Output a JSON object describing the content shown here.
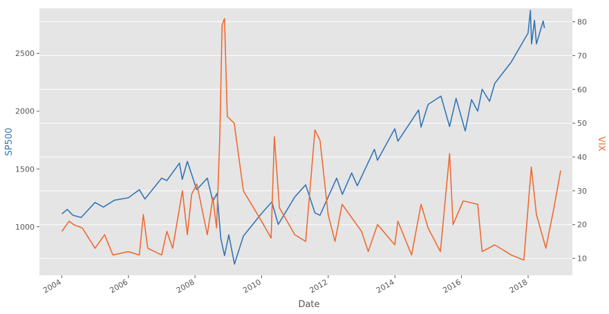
{
  "chart_data": {
    "type": "line",
    "xlabel": "Date",
    "ylabel_left": "SP500",
    "ylabel_right": "VIX",
    "x_range": [
      "2003-05-01",
      "2019-05-01"
    ],
    "x_ticks": [
      "2004",
      "2006",
      "2008",
      "2010",
      "2012",
      "2014",
      "2016",
      "2018"
    ],
    "y_left_ticks": [
      1000,
      1500,
      2000,
      2500
    ],
    "y_left_range": [
      580,
      2890
    ],
    "y_right_ticks": [
      10,
      20,
      30,
      40,
      50,
      60,
      70,
      80
    ],
    "y_right_range": [
      5.0,
      84.0
    ],
    "grid": true,
    "background": "#e5e5e5",
    "colors": {
      "sp500": "#3274b5",
      "vix": "#ee6a30"
    },
    "series": [
      {
        "name": "SP500",
        "axis": "left",
        "points": [
          [
            "2004-01-02",
            1110
          ],
          [
            "2004-03-01",
            1150
          ],
          [
            "2004-05-01",
            1100
          ],
          [
            "2004-08-01",
            1080
          ],
          [
            "2004-12-31",
            1210
          ],
          [
            "2005-04-01",
            1170
          ],
          [
            "2005-08-01",
            1230
          ],
          [
            "2005-12-31",
            1250
          ],
          [
            "2006-05-01",
            1320
          ],
          [
            "2006-07-01",
            1240
          ],
          [
            "2006-12-31",
            1420
          ],
          [
            "2007-02-27",
            1400
          ],
          [
            "2007-07-15",
            1550
          ],
          [
            "2007-08-15",
            1410
          ],
          [
            "2007-10-09",
            1565
          ],
          [
            "2008-01-20",
            1320
          ],
          [
            "2008-05-15",
            1420
          ],
          [
            "2008-07-15",
            1220
          ],
          [
            "2008-08-30",
            1290
          ],
          [
            "2008-10-10",
            900
          ],
          [
            "2008-11-20",
            750
          ],
          [
            "2009-01-06",
            930
          ],
          [
            "2009-03-09",
            677
          ],
          [
            "2009-06-15",
            920
          ],
          [
            "2009-12-31",
            1115
          ],
          [
            "2010-04-23",
            1215
          ],
          [
            "2010-07-02",
            1020
          ],
          [
            "2010-12-31",
            1258
          ],
          [
            "2011-04-29",
            1363
          ],
          [
            "2011-08-08",
            1120
          ],
          [
            "2011-10-03",
            1099
          ],
          [
            "2011-12-31",
            1257
          ],
          [
            "2012-04-02",
            1420
          ],
          [
            "2012-06-04",
            1280
          ],
          [
            "2012-09-14",
            1465
          ],
          [
            "2012-11-15",
            1355
          ],
          [
            "2013-05-21",
            1670
          ],
          [
            "2013-06-24",
            1575
          ],
          [
            "2013-12-31",
            1848
          ],
          [
            "2014-02-03",
            1740
          ],
          [
            "2014-09-18",
            2010
          ],
          [
            "2014-10-15",
            1862
          ],
          [
            "2014-12-31",
            2058
          ],
          [
            "2015-05-21",
            2130
          ],
          [
            "2015-08-24",
            1867
          ],
          [
            "2015-11-03",
            2110
          ],
          [
            "2016-02-11",
            1829
          ],
          [
            "2016-04-20",
            2100
          ],
          [
            "2016-06-27",
            2000
          ],
          [
            "2016-08-15",
            2190
          ],
          [
            "2016-11-04",
            2085
          ],
          [
            "2016-12-31",
            2240
          ],
          [
            "2017-06-30",
            2425
          ],
          [
            "2017-12-31",
            2675
          ],
          [
            "2018-01-26",
            2872
          ],
          [
            "2018-02-08",
            2581
          ],
          [
            "2018-03-12",
            2786
          ],
          [
            "2018-04-02",
            2582
          ],
          [
            "2018-06-15",
            2780
          ],
          [
            "2018-06-29",
            2718
          ]
        ]
      },
      {
        "name": "VIX",
        "axis": "right",
        "points": [
          [
            "2004-01-02",
            18
          ],
          [
            "2004-03-22",
            21
          ],
          [
            "2004-05-10",
            20
          ],
          [
            "2004-08-13",
            19
          ],
          [
            "2004-12-31",
            13
          ],
          [
            "2005-04-15",
            17
          ],
          [
            "2005-07-15",
            11
          ],
          [
            "2005-12-31",
            12
          ],
          [
            "2006-05-01",
            11
          ],
          [
            "2006-06-13",
            23
          ],
          [
            "2006-08-01",
            13
          ],
          [
            "2006-12-31",
            11
          ],
          [
            "2007-02-27",
            18
          ],
          [
            "2007-05-01",
            13
          ],
          [
            "2007-08-16",
            30
          ],
          [
            "2007-10-09",
            17
          ],
          [
            "2007-11-26",
            29
          ],
          [
            "2008-01-22",
            32
          ],
          [
            "2008-05-15",
            17
          ],
          [
            "2008-07-15",
            28
          ],
          [
            "2008-08-25",
            19
          ],
          [
            "2008-09-29",
            46
          ],
          [
            "2008-10-24",
            79
          ],
          [
            "2008-11-20",
            81
          ],
          [
            "2008-12-20",
            52
          ],
          [
            "2009-03-06",
            50
          ],
          [
            "2009-06-15",
            30
          ],
          [
            "2009-12-31",
            21
          ],
          [
            "2010-04-15",
            16
          ],
          [
            "2010-05-20",
            46
          ],
          [
            "2010-07-15",
            25
          ],
          [
            "2010-12-31",
            17
          ],
          [
            "2011-04-29",
            15
          ],
          [
            "2011-08-08",
            48
          ],
          [
            "2011-10-03",
            45
          ],
          [
            "2011-12-31",
            23
          ],
          [
            "2012-03-15",
            15
          ],
          [
            "2012-06-01",
            26
          ],
          [
            "2012-12-31",
            18
          ],
          [
            "2013-03-15",
            12
          ],
          [
            "2013-06-24",
            20
          ],
          [
            "2013-12-31",
            14
          ],
          [
            "2014-02-03",
            21
          ],
          [
            "2014-07-03",
            11
          ],
          [
            "2014-10-15",
            26
          ],
          [
            "2014-12-31",
            19
          ],
          [
            "2015-05-15",
            12
          ],
          [
            "2015-08-24",
            41
          ],
          [
            "2015-10-01",
            20
          ],
          [
            "2016-01-20",
            27
          ],
          [
            "2016-06-27",
            26
          ],
          [
            "2016-08-15",
            12
          ],
          [
            "2016-12-31",
            14
          ],
          [
            "2017-06-30",
            11
          ],
          [
            "2017-11-15",
            9.5
          ],
          [
            "2018-02-05",
            37
          ],
          [
            "2018-04-02",
            23
          ],
          [
            "2018-07-15",
            13
          ],
          [
            "2018-10-11",
            25
          ],
          [
            "2018-12-24",
            36
          ]
        ]
      }
    ]
  }
}
